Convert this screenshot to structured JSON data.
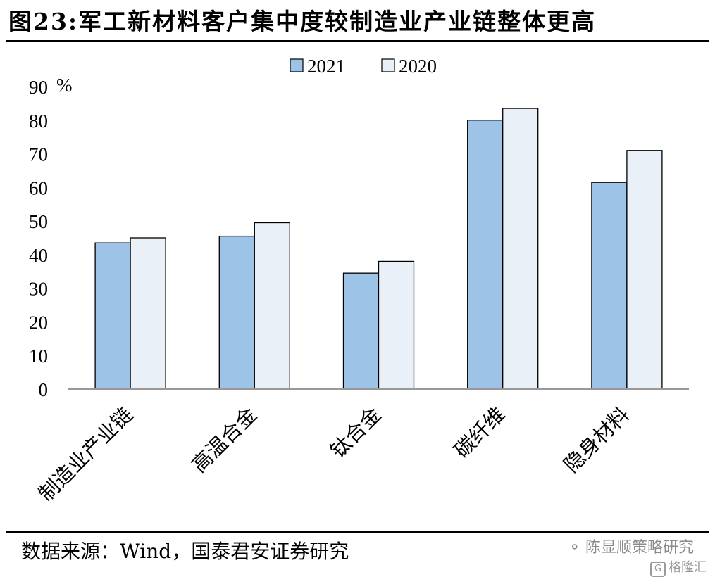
{
  "header": {
    "title": "图23:军工新材料客户集中度较制造业产业链整体更高"
  },
  "chart_data": {
    "type": "bar",
    "categories": [
      "制造业产业链",
      "高温合金",
      "钛合金",
      "碳纤维",
      "隐身材料"
    ],
    "series": [
      {
        "name": "2021",
        "values": [
          43.5,
          45.5,
          34.5,
          80,
          61.5
        ],
        "color": "#9DC3E6"
      },
      {
        "name": "2020",
        "values": [
          45,
          49.5,
          38,
          83.5,
          71
        ],
        "color": "#E9F0F8"
      }
    ],
    "unit": "%",
    "ylim": [
      0,
      90
    ],
    "yticks": [
      "0",
      "10",
      "20",
      "30",
      "40",
      "50",
      "60",
      "70",
      "80",
      "90"
    ],
    "legend_position": "top-center",
    "grid": false
  },
  "footer": {
    "source": "数据来源：Wind，国泰君安证券研究",
    "watermark": "陈显顺策略研究",
    "watermark_sub": "格隆汇"
  }
}
